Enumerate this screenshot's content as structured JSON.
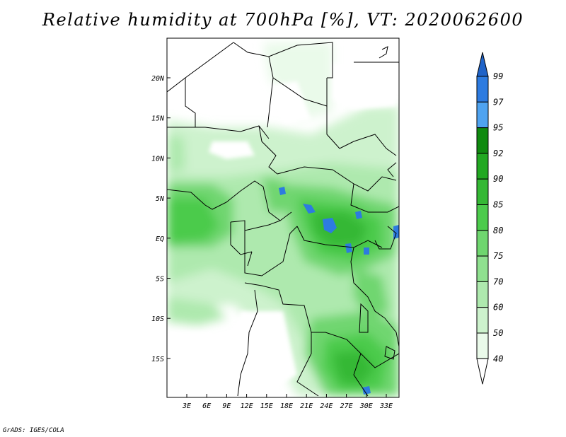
{
  "title": "Relative humidity at 700hPa [%], VT: 2020062600",
  "credit": "GrADS: IGES/COLA",
  "map": {
    "lon_ticks": [
      "3E",
      "6E",
      "9E",
      "12E",
      "15E",
      "18E",
      "21E",
      "24E",
      "27E",
      "30E",
      "33E"
    ],
    "lat_ticks": [
      "20N",
      "15N",
      "10N",
      "5N",
      "EQ",
      "5S",
      "10S",
      "15S"
    ]
  },
  "colorbar": {
    "levels": [
      "99",
      "97",
      "95",
      "92",
      "90",
      "85",
      "80",
      "75",
      "70",
      "60",
      "50",
      "40"
    ],
    "colors": [
      "#1f63c8",
      "#2d7be0",
      "#4fa3f0",
      "#108a10",
      "#22a822",
      "#35b835",
      "#4ccb4c",
      "#6fd66f",
      "#8fe08f",
      "#aee9ae",
      "#cdf2cd",
      "#eafaea",
      "#ffffff"
    ]
  }
}
